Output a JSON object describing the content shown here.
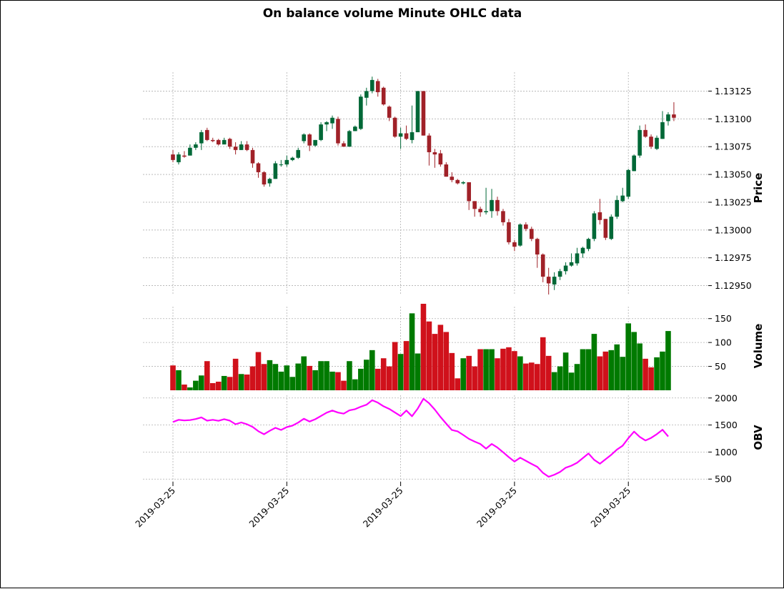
{
  "chart_data": {
    "type": "candlestick",
    "title": "On balance volume Minute OHLC data",
    "x_tick_labels": [
      "2019-03-25",
      "2019-03-25",
      "2019-03-25",
      "2019-03-25",
      "2019-03-25"
    ],
    "x_tick_index": [
      0,
      20,
      40,
      60,
      80
    ],
    "panels": {
      "price": {
        "ylabel": "Price",
        "ylim": [
          1.12942,
          1.13142
        ],
        "ticks": [
          "1.12950",
          "1.12975",
          "1.13000",
          "1.13025",
          "1.13050",
          "1.13075",
          "1.13100",
          "1.13125"
        ],
        "grid": true
      },
      "volume": {
        "ylabel": "Volume",
        "ylim": [
          0,
          175
        ],
        "ticks": [
          "50",
          "100",
          "150"
        ],
        "grid": true
      },
      "obv": {
        "ylabel": "OBV",
        "ylim": [
          450,
          2050
        ],
        "ticks": [
          "500",
          "1000",
          "1500",
          "2000"
        ],
        "grid": true
      }
    },
    "colors": {
      "up": "#006837",
      "down": "#a02128",
      "vol_up": "#007a00",
      "vol_down": "#d0111b",
      "obv": "#ff00ff"
    },
    "ohlc": [
      [
        1.13068,
        1.13072,
        1.13061,
        1.13063
      ],
      [
        1.13061,
        1.1307,
        1.13059,
        1.13068
      ],
      [
        1.13067,
        1.13071,
        1.13065,
        1.13066
      ],
      [
        1.13067,
        1.13077,
        1.13067,
        1.13074
      ],
      [
        1.13074,
        1.13079,
        1.13072,
        1.13077
      ],
      [
        1.13078,
        1.1309,
        1.13072,
        1.13088
      ],
      [
        1.1309,
        1.13092,
        1.1308,
        1.13081
      ],
      [
        1.13081,
        1.13083,
        1.13079,
        1.1308
      ],
      [
        1.13081,
        1.13082,
        1.13076,
        1.13077
      ],
      [
        1.13077,
        1.13083,
        1.13077,
        1.13081
      ],
      [
        1.13082,
        1.13083,
        1.13073,
        1.13075
      ],
      [
        1.13075,
        1.13079,
        1.13068,
        1.13072
      ],
      [
        1.13072,
        1.1308,
        1.13072,
        1.13077
      ],
      [
        1.13077,
        1.1308,
        1.13071,
        1.13072
      ],
      [
        1.13072,
        1.13074,
        1.13056,
        1.1306
      ],
      [
        1.1306,
        1.13061,
        1.13047,
        1.13052
      ],
      [
        1.13052,
        1.13053,
        1.13039,
        1.13041
      ],
      [
        1.13042,
        1.13047,
        1.13039,
        1.13046
      ],
      [
        1.13046,
        1.13062,
        1.13046,
        1.1306
      ],
      [
        1.13059,
        1.13063,
        1.13057,
        1.13059
      ],
      [
        1.13059,
        1.13067,
        1.13057,
        1.13063
      ],
      [
        1.13063,
        1.13066,
        1.13062,
        1.13065
      ],
      [
        1.13065,
        1.13074,
        1.13064,
        1.13072
      ],
      [
        1.1308,
        1.13087,
        1.13078,
        1.13086
      ],
      [
        1.13086,
        1.13087,
        1.13071,
        1.13076
      ],
      [
        1.13076,
        1.13081,
        1.13075,
        1.13081
      ],
      [
        1.13081,
        1.13097,
        1.1308,
        1.13095
      ],
      [
        1.13095,
        1.13098,
        1.13089,
        1.13097
      ],
      [
        1.13096,
        1.13103,
        1.13091,
        1.13101
      ],
      [
        1.131,
        1.13102,
        1.13076,
        1.13078
      ],
      [
        1.13078,
        1.1308,
        1.13075,
        1.13075
      ],
      [
        1.13075,
        1.1309,
        1.13075,
        1.13089
      ],
      [
        1.13089,
        1.13094,
        1.13089,
        1.13093
      ],
      [
        1.13091,
        1.13122,
        1.1309,
        1.1312
      ],
      [
        1.13119,
        1.13128,
        1.13112,
        1.13125
      ],
      [
        1.13125,
        1.13138,
        1.13123,
        1.13135
      ],
      [
        1.13134,
        1.13136,
        1.1312,
        1.13124
      ],
      [
        1.13128,
        1.13129,
        1.13112,
        1.13113
      ],
      [
        1.13111,
        1.13112,
        1.13098,
        1.13101
      ],
      [
        1.13101,
        1.13102,
        1.13083,
        1.13084
      ],
      [
        1.13084,
        1.13092,
        1.13073,
        1.13087
      ],
      [
        1.13087,
        1.13094,
        1.13081,
        1.13082
      ],
      [
        1.13081,
        1.13112,
        1.13078,
        1.13088
      ],
      [
        1.13088,
        1.13125,
        1.13088,
        1.13125
      ],
      [
        1.13125,
        1.13125,
        1.13085,
        1.13085
      ],
      [
        1.13085,
        1.13087,
        1.13058,
        1.1307
      ],
      [
        1.1307,
        1.13073,
        1.13056,
        1.13068
      ],
      [
        1.13069,
        1.13072,
        1.13057,
        1.13059
      ],
      [
        1.13059,
        1.13061,
        1.13048,
        1.13048
      ],
      [
        1.13048,
        1.13052,
        1.13043,
        1.13045
      ],
      [
        1.13045,
        1.13046,
        1.13041,
        1.13042
      ],
      [
        1.13042,
        1.13044,
        1.13041,
        1.13043
      ],
      [
        1.13043,
        1.13043,
        1.13018,
        1.13026
      ],
      [
        1.13026,
        1.13026,
        1.13012,
        1.13019
      ],
      [
        1.13019,
        1.13021,
        1.13012,
        1.13016
      ],
      [
        1.13016,
        1.13038,
        1.13014,
        1.13017
      ],
      [
        1.13017,
        1.13037,
        1.13011,
        1.13027
      ],
      [
        1.13027,
        1.1303,
        1.13013,
        1.13017
      ],
      [
        1.13017,
        1.13019,
        1.13004,
        1.13007
      ],
      [
        1.13007,
        1.1301,
        1.12987,
        1.12989
      ],
      [
        1.12989,
        1.12991,
        1.12981,
        1.12985
      ],
      [
        1.12986,
        1.13006,
        1.12985,
        1.13005
      ],
      [
        1.13005,
        1.13007,
        1.12999,
        1.13001
      ],
      [
        1.13001,
        1.13003,
        1.1299,
        1.12992
      ],
      [
        1.12992,
        1.12993,
        1.12966,
        1.12978
      ],
      [
        1.12978,
        1.12979,
        1.12953,
        1.12958
      ],
      [
        1.12958,
        1.12966,
        1.12942,
        1.12952
      ],
      [
        1.12951,
        1.12962,
        1.12946,
        1.12958
      ],
      [
        1.12958,
        1.12965,
        1.12955,
        1.12963
      ],
      [
        1.12963,
        1.12971,
        1.1296,
        1.12968
      ],
      [
        1.12968,
        1.12979,
        1.12967,
        1.12971
      ],
      [
        1.1297,
        1.12984,
        1.12968,
        1.12979
      ],
      [
        1.12979,
        1.12985,
        1.12975,
        1.12984
      ],
      [
        1.12983,
        1.12993,
        1.12981,
        1.12992
      ],
      [
        1.12992,
        1.13017,
        1.1299,
        1.13015
      ],
      [
        1.13016,
        1.13028,
        1.13005,
        1.13009
      ],
      [
        1.1301,
        1.1301,
        1.12991,
        1.12993
      ],
      [
        1.12992,
        1.13014,
        1.12991,
        1.13012
      ],
      [
        1.13012,
        1.13031,
        1.1301,
        1.13027
      ],
      [
        1.13026,
        1.13038,
        1.13025,
        1.13031
      ],
      [
        1.1303,
        1.13055,
        1.13028,
        1.13054
      ],
      [
        1.13053,
        1.13068,
        1.13053,
        1.13067
      ],
      [
        1.13067,
        1.13094,
        1.13065,
        1.1309
      ],
      [
        1.1309,
        1.13095,
        1.13083,
        1.13084
      ],
      [
        1.13084,
        1.13086,
        1.13073,
        1.13075
      ],
      [
        1.13073,
        1.13085,
        1.13072,
        1.13083
      ],
      [
        1.13082,
        1.13107,
        1.13082,
        1.13097
      ],
      [
        1.13098,
        1.13106,
        1.13094,
        1.13104
      ],
      [
        1.13104,
        1.13115,
        1.13098,
        1.13101
      ]
    ],
    "volume": [
      52,
      42,
      12,
      6,
      20,
      31,
      61,
      15,
      18,
      30,
      28,
      66,
      34,
      33,
      50,
      80,
      55,
      63,
      55,
      39,
      52,
      28,
      56,
      71,
      51,
      42,
      61,
      61,
      39,
      38,
      20,
      61,
      23,
      45,
      64,
      84,
      45,
      67,
      50,
      101,
      76,
      103,
      161,
      77,
      181,
      144,
      118,
      137,
      122,
      78,
      25,
      67,
      72,
      50,
      86,
      86,
      86,
      67,
      87,
      90,
      82,
      71,
      56,
      58,
      55,
      111,
      72,
      38,
      50,
      79,
      37,
      55,
      86,
      86,
      118,
      71,
      81,
      84,
      96,
      70,
      140,
      122,
      98,
      66,
      48,
      69,
      81,
      124
    ],
    "obv": [
      1555,
      1597,
      1585,
      1591,
      1611,
      1642,
      1581,
      1596,
      1578,
      1608,
      1580,
      1514,
      1548,
      1515,
      1465,
      1385,
      1330,
      1393,
      1448,
      1409,
      1461,
      1489,
      1545,
      1616,
      1565,
      1607,
      1668,
      1729,
      1768,
      1730,
      1710,
      1771,
      1794,
      1839,
      1875,
      1959,
      1914,
      1847,
      1797,
      1731,
      1665,
      1768,
      1663,
      1804,
      1986,
      1903,
      1785,
      1648,
      1526,
      1408,
      1383,
      1316,
      1244,
      1194,
      1150,
      1064,
      1150,
      1083,
      996,
      906,
      824,
      895,
      839,
      781,
      726,
      615,
      543,
      581,
      631,
      710,
      747,
      802,
      888,
      974,
      856,
      785,
      866,
      950,
      1046,
      1116,
      1256,
      1378,
      1280,
      1214,
      1262,
      1331,
      1412,
      1288
    ]
  }
}
